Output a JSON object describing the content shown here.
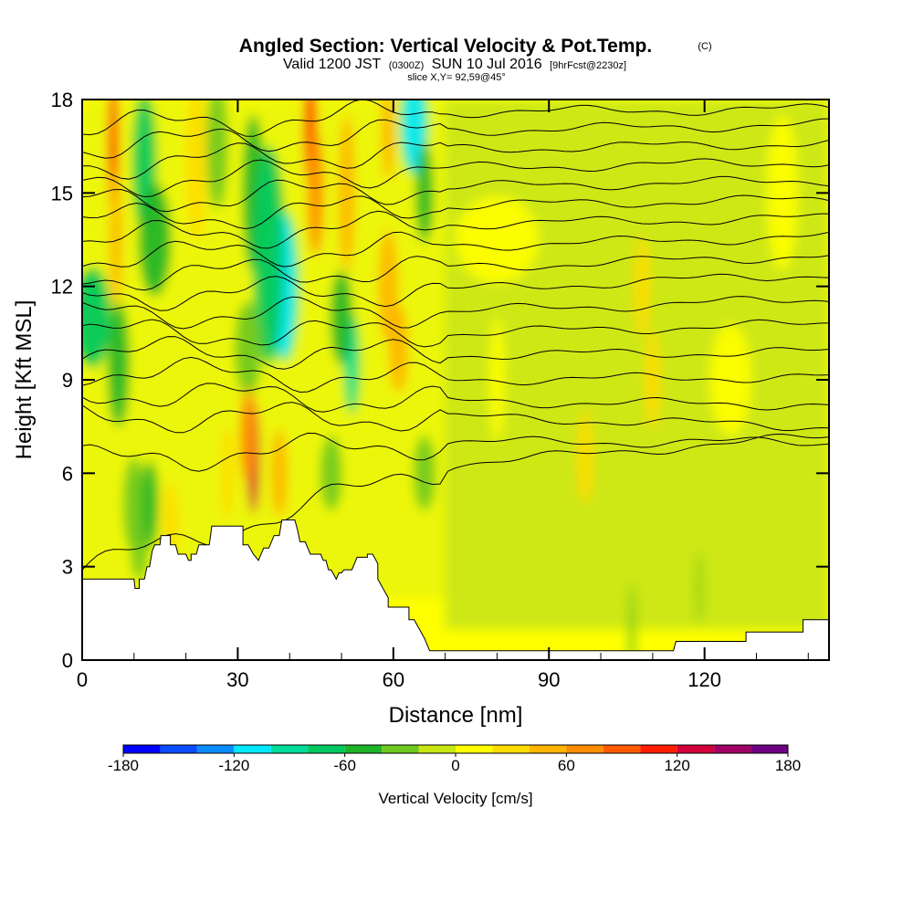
{
  "chart_data": {
    "type": "heatmap",
    "title": "Angled Section: Vertical Velocity & Pot.Temp.",
    "title_suffix": "(C)",
    "subtitle": {
      "valid": "Valid 1200 JST",
      "utc": "(0300Z)",
      "date": "SUN 10 Jul 2016",
      "forecast": "[9hrFcst@2230z]"
    },
    "slice": "slice X,Y= 92,59@45°",
    "xlabel": "Distance [nm]",
    "ylabel": "Height [Kft MSL]",
    "xlim": [
      0,
      144
    ],
    "ylim": [
      0,
      18
    ],
    "x_ticks": [
      "0",
      "30",
      "60",
      "90",
      "120"
    ],
    "x_tick_values": [
      0,
      30,
      60,
      90,
      120
    ],
    "y_ticks": [
      "0",
      "3",
      "6",
      "9",
      "12",
      "15",
      "18"
    ],
    "y_tick_values": [
      0,
      3,
      6,
      9,
      12,
      15,
      18
    ],
    "colorbar": {
      "title": "Vertical Velocity [cm/s]",
      "min": -180,
      "max": 180,
      "step": 20,
      "labels": [
        "-180",
        "-120",
        "-60",
        "0",
        "60",
        "120",
        "180"
      ],
      "label_values": [
        -180,
        -120,
        -60,
        0,
        60,
        120,
        180
      ],
      "colors": [
        "#0000ff",
        "#0a4cff",
        "#0a8cff",
        "#00e8ff",
        "#00dc9c",
        "#00c860",
        "#1eb428",
        "#6ec81e",
        "#c8e614",
        "#ffff00",
        "#ffdc00",
        "#ffb400",
        "#ff8c00",
        "#ff5a00",
        "#ff1e00",
        "#d2003c",
        "#a00064",
        "#6e0082"
      ]
    },
    "velocity_features": [
      {
        "x": 6,
        "y": 16.5,
        "w": 0.9,
        "h": 2.2,
        "value": 110
      },
      {
        "x": 6.5,
        "y": 13.5,
        "w": 1.1,
        "h": 2.2,
        "value": 50
      },
      {
        "x": 2,
        "y": 11,
        "w": 3.5,
        "h": 1.6,
        "value": -70
      },
      {
        "x": 7,
        "y": 9.5,
        "w": 2.0,
        "h": 2.0,
        "value": -55
      },
      {
        "x": 12,
        "y": 16,
        "w": 2.2,
        "h": 2.2,
        "value": -65
      },
      {
        "x": 14,
        "y": 13.5,
        "w": 3.0,
        "h": 1.8,
        "value": -45
      },
      {
        "x": 22,
        "y": 16,
        "w": 2.0,
        "h": 2.5,
        "value": 35
      },
      {
        "x": 26,
        "y": 16.5,
        "w": 2.0,
        "h": 2.0,
        "value": -40
      },
      {
        "x": 33,
        "y": 15,
        "w": 2.0,
        "h": 2.5,
        "value": -60
      },
      {
        "x": 39,
        "y": 12,
        "w": 2.6,
        "h": 2.4,
        "value": -110
      },
      {
        "x": 36,
        "y": 13,
        "w": 3.0,
        "h": 3.5,
        "value": -70
      },
      {
        "x": 32,
        "y": 10,
        "w": 2.5,
        "h": 1.5,
        "value": -40
      },
      {
        "x": 44,
        "y": 17,
        "w": 1.1,
        "h": 1.8,
        "value": 110
      },
      {
        "x": 45,
        "y": 15,
        "w": 1.5,
        "h": 2.0,
        "value": 60
      },
      {
        "x": 51,
        "y": 15,
        "w": 1.5,
        "h": 2.5,
        "value": 55
      },
      {
        "x": 52,
        "y": 9.5,
        "w": 1.4,
        "h": 1.6,
        "value": -90
      },
      {
        "x": 50,
        "y": 11,
        "w": 2.0,
        "h": 1.5,
        "value": -50
      },
      {
        "x": 59,
        "y": 12,
        "w": 1.8,
        "h": 1.8,
        "value": 50
      },
      {
        "x": 61,
        "y": 10,
        "w": 1.8,
        "h": 1.4,
        "value": 45
      },
      {
        "x": 64,
        "y": 17.2,
        "w": 2.6,
        "h": 1.6,
        "value": -110
      },
      {
        "x": 66,
        "y": 15,
        "w": 1.6,
        "h": 1.6,
        "value": -60
      },
      {
        "x": 59,
        "y": 17,
        "w": 1.2,
        "h": 1.6,
        "value": 40
      },
      {
        "x": 33,
        "y": 6.5,
        "w": 1.1,
        "h": 1.8,
        "value": 120
      },
      {
        "x": 32,
        "y": 7.2,
        "w": 1.5,
        "h": 1.5,
        "value": 60
      },
      {
        "x": 38,
        "y": 6,
        "w": 1.5,
        "h": 1.4,
        "value": 40
      },
      {
        "x": 28,
        "y": 6,
        "w": 1.2,
        "h": 1.5,
        "value": 30
      },
      {
        "x": 10,
        "y": 5,
        "w": 2.0,
        "h": 1.5,
        "value": -35
      },
      {
        "x": 13,
        "y": 5,
        "w": 1.6,
        "h": 1.4,
        "value": -45
      },
      {
        "x": 17,
        "y": 4.5,
        "w": 1.5,
        "h": 1.2,
        "value": 30
      },
      {
        "x": 11,
        "y": 3.5,
        "w": 1.5,
        "h": 0.9,
        "value": -25
      },
      {
        "x": 48,
        "y": 6,
        "w": 2.0,
        "h": 1.2,
        "value": -30
      },
      {
        "x": 66,
        "y": 6,
        "w": 2.0,
        "h": 1.2,
        "value": -30
      },
      {
        "x": 80,
        "y": 9,
        "w": 1.5,
        "h": 2.0,
        "value": 15
      },
      {
        "x": 110,
        "y": 9,
        "w": 1.5,
        "h": 1.6,
        "value": 25
      },
      {
        "x": 125,
        "y": 9,
        "w": 4.0,
        "h": 1.8,
        "value": 15
      },
      {
        "x": 97,
        "y": 6.5,
        "w": 1.5,
        "h": 1.5,
        "value": 25
      },
      {
        "x": 80,
        "y": 13.5,
        "w": 8.0,
        "h": 1.4,
        "value": 18
      },
      {
        "x": 108,
        "y": 12,
        "w": 1.5,
        "h": 1.6,
        "value": 20
      },
      {
        "x": 135,
        "y": 15,
        "w": 3.0,
        "h": 2.5,
        "value": 15
      },
      {
        "x": 106,
        "y": 1,
        "w": 0.6,
        "h": 1.5,
        "value": -30
      },
      {
        "x": 119,
        "y": 2.3,
        "w": 0.5,
        "h": 1.2,
        "value": -30
      }
    ],
    "theta_lines": [
      {
        "yL": 2.9,
        "ym": 6.3,
        "yR": 7.2
      },
      {
        "yL": 6.4,
        "ym": 7.0,
        "yR": 7.0
      },
      {
        "yL": 7.8,
        "ym": 7.8,
        "yR": 7.5
      },
      {
        "yL": 8.6,
        "ym": 8.3,
        "yR": 8.2
      },
      {
        "yL": 9.3,
        "ym": 9.0,
        "yR": 9.1
      },
      {
        "yL": 9.9,
        "ym": 9.8,
        "yR": 9.9
      },
      {
        "yL": 10.5,
        "ym": 10.5,
        "yR": 10.8
      },
      {
        "yL": 11.1,
        "ym": 11.2,
        "yR": 11.6
      },
      {
        "yL": 11.7,
        "ym": 11.9,
        "yR": 12.4
      },
      {
        "yL": 12.3,
        "ym": 12.6,
        "yR": 13.0
      },
      {
        "yL": 12.9,
        "ym": 13.3,
        "yR": 13.6
      },
      {
        "yL": 13.5,
        "ym": 14.0,
        "yR": 14.2
      },
      {
        "yL": 14.1,
        "ym": 14.6,
        "yR": 14.8
      },
      {
        "yL": 14.7,
        "ym": 15.2,
        "yR": 15.4
      },
      {
        "yL": 15.3,
        "ym": 15.8,
        "yR": 16.0
      },
      {
        "yL": 15.9,
        "ym": 16.4,
        "yR": 16.6
      },
      {
        "yL": 16.5,
        "ym": 17.0,
        "yR": 17.2
      },
      {
        "yL": 17.1,
        "ym": 17.6,
        "yR": 17.7
      }
    ],
    "terrain": [
      [
        0,
        2.6
      ],
      [
        10,
        2.6
      ],
      [
        10.2,
        2.3
      ],
      [
        11,
        2.3
      ],
      [
        11,
        2.6
      ],
      [
        12,
        2.6
      ],
      [
        12.5,
        3.0
      ],
      [
        13,
        3.0
      ],
      [
        13.5,
        3.5
      ],
      [
        14,
        3.7
      ],
      [
        15,
        3.7
      ],
      [
        15.2,
        4.0
      ],
      [
        17,
        4.0
      ],
      [
        17,
        3.7
      ],
      [
        18,
        3.7
      ],
      [
        18.5,
        3.4
      ],
      [
        19,
        3.4
      ],
      [
        20,
        3.4
      ],
      [
        20.5,
        3.2
      ],
      [
        21,
        3.2
      ],
      [
        21,
        3.4
      ],
      [
        22,
        3.4
      ],
      [
        22.5,
        3.7
      ],
      [
        23,
        3.7
      ],
      [
        24.5,
        3.7
      ],
      [
        25,
        4.3
      ],
      [
        31,
        4.3
      ],
      [
        31,
        3.7
      ],
      [
        32,
        3.7
      ],
      [
        33,
        3.4
      ],
      [
        34,
        3.2
      ],
      [
        35,
        3.6
      ],
      [
        36,
        3.6
      ],
      [
        37,
        4.0
      ],
      [
        38,
        4.0
      ],
      [
        38.5,
        4.5
      ],
      [
        41,
        4.5
      ],
      [
        41.5,
        4.2
      ],
      [
        42,
        3.8
      ],
      [
        43,
        3.8
      ],
      [
        44,
        3.4
      ],
      [
        46,
        3.4
      ],
      [
        46.5,
        3.2
      ],
      [
        47,
        3.2
      ],
      [
        47.5,
        2.9
      ],
      [
        48,
        2.9
      ],
      [
        49,
        2.6
      ],
      [
        49.5,
        2.8
      ],
      [
        50,
        2.8
      ],
      [
        50.5,
        2.9
      ],
      [
        52,
        2.9
      ],
      [
        53,
        3.3
      ],
      [
        55,
        3.3
      ],
      [
        55,
        3.4
      ],
      [
        56,
        3.4
      ],
      [
        57,
        3.1
      ],
      [
        57,
        2.6
      ],
      [
        58,
        2.3
      ],
      [
        59,
        2.0
      ],
      [
        59,
        1.7
      ],
      [
        63,
        1.7
      ],
      [
        63,
        1.3
      ],
      [
        64,
        1.3
      ],
      [
        65,
        1.0
      ],
      [
        66,
        0.7
      ],
      [
        67,
        0.3
      ],
      [
        68,
        0.3
      ],
      [
        80,
        0.3
      ],
      [
        90,
        0.3
      ],
      [
        100,
        0.3
      ],
      [
        108,
        0.3
      ],
      [
        114,
        0.3
      ],
      [
        114.5,
        0.6
      ],
      [
        122,
        0.6
      ],
      [
        128,
        0.6
      ],
      [
        128,
        0.9
      ],
      [
        139,
        0.9
      ],
      [
        139,
        1.3
      ],
      [
        144,
        1.3
      ]
    ]
  }
}
